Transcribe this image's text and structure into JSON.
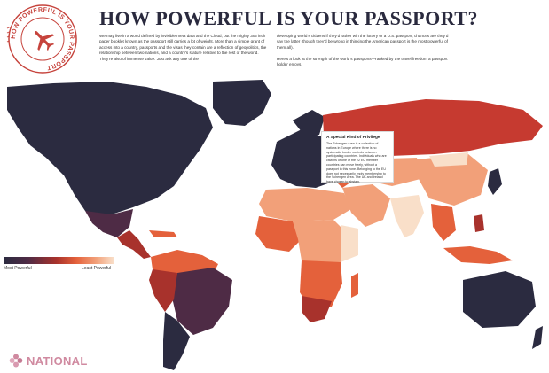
{
  "stamp": {
    "ring_text": "HOW POWERFUL IS YOUR PASSPORT",
    "icon": "airplane-icon",
    "color": "#c6433c"
  },
  "header": {
    "title": "HOW POWERFUL IS YOUR PASSPORT?"
  },
  "intro": {
    "left": "We may live in a world defined by invisible meta data and the Cloud, but the mighty 3x5 inch paper booklet known as the passport still carries a lot of weight. More than a simple grant of access into a country, passports and the visas they contain are a reflection of geopolitics, the relationship between two nations, and a country's stature relative to the rest of the world. They're also of immense value. Just ask any one of the",
    "right": "developing world's citizens if they'd rather win the lottery or a U.S. passport; chances are they'd say the latter (though they'd be wrong in thinking the American passport is the most powerful of them all).\n\nHere's a look at the strength of the world's passports—ranked by the travel freedom a passport holder enjoys."
  },
  "callout": {
    "title": "A Special Kind of Privilege",
    "body": "The Schengen Area is a collection of nations in Europe where there is no systematic border controls between participating countries. Individuals who are citizens of one of the 22 EU member countries can move freely, without a passport in this zone. Belonging to the EU does not necessarily imply membership to the Schengen Area. The UK and Ireland have chosen to abstain."
  },
  "legend": {
    "most_label": "Most Powerful",
    "least_label": "Least Powerful",
    "colors": [
      "#2b2b40",
      "#4e2b45",
      "#a8322c",
      "#e4613b",
      "#f2a079",
      "#f9dfc9"
    ]
  },
  "brand": {
    "name": "NATIONAL",
    "icon": "flower-logo-icon",
    "color": "#d08aa0"
  },
  "map": {
    "ocean": "#ffffff",
    "strongest": "#2b2b40",
    "strong": "#4e2b45",
    "mid": "#a8322c",
    "weak": "#e4613b",
    "weaker": "#f2a079",
    "weakest": "#f9dfc9"
  }
}
